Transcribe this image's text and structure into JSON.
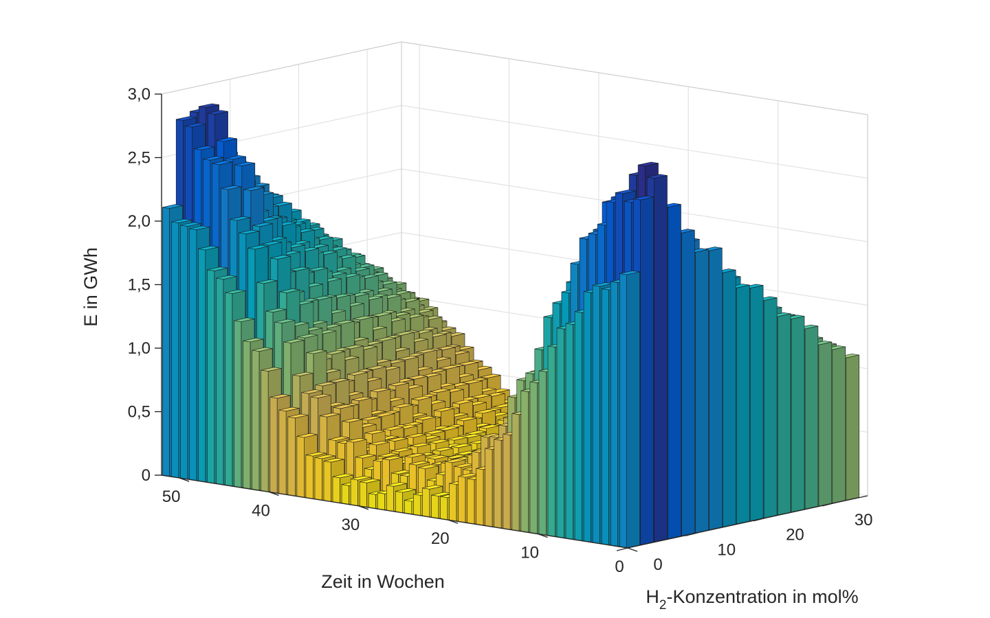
{
  "chart_data": {
    "type": "bar3d",
    "title": "",
    "xlabel": "Zeit in Wochen",
    "ylabel_main": "H",
    "ylabel_sub": "2",
    "ylabel_rest": "-Konzentration in mol%",
    "zlabel": "E in GWh",
    "xlim": [
      0,
      52
    ],
    "ylim": [
      0,
      35
    ],
    "zlim": [
      0,
      3.0
    ],
    "x_ticks": [
      0,
      10,
      20,
      30,
      40,
      50
    ],
    "y_ticks": [
      0,
      10,
      20,
      30
    ],
    "z_ticks": [
      {
        "value": 0,
        "label": "0"
      },
      {
        "value": 0.5,
        "label": "0,5"
      },
      {
        "value": 1.0,
        "label": "1,0"
      },
      {
        "value": 1.5,
        "label": "1,5"
      },
      {
        "value": 2.0,
        "label": "2,0"
      },
      {
        "value": 2.5,
        "label": "2,5"
      },
      {
        "value": 3.0,
        "label": "3,0"
      }
    ],
    "grid": true,
    "colormap": "parula",
    "weeks": 52,
    "concentrations": [
      0,
      2,
      4,
      6,
      8,
      10,
      12,
      14,
      16,
      18,
      20,
      22,
      24,
      26,
      28,
      30,
      32
    ],
    "peaks": [
      {
        "conc": 0,
        "winter": 2.1,
        "summer": 0.15
      },
      {
        "conc": 2,
        "winter": 2.75,
        "summer": 0.3
      },
      {
        "conc": 4,
        "winter": 2.9,
        "summer": 0.3
      },
      {
        "conc": 6,
        "winter": 2.55,
        "summer": 0.28
      },
      {
        "conc": 8,
        "winter": 2.4,
        "summer": 0.26
      },
      {
        "conc": 10,
        "winter": 2.25,
        "summer": 0.24
      },
      {
        "conc": 12,
        "winter": 2.15,
        "summer": 0.22
      },
      {
        "conc": 14,
        "winter": 2.0,
        "summer": 0.2
      },
      {
        "conc": 16,
        "winter": 1.9,
        "summer": 0.18
      },
      {
        "conc": 18,
        "winter": 1.8,
        "summer": 0.16
      },
      {
        "conc": 20,
        "winter": 1.7,
        "summer": 0.15
      },
      {
        "conc": 22,
        "winter": 1.6,
        "summer": 0.14
      },
      {
        "conc": 24,
        "winter": 1.5,
        "summer": 0.13
      },
      {
        "conc": 26,
        "winter": 1.4,
        "summer": 0.12
      },
      {
        "conc": 28,
        "winter": 1.3,
        "summer": 0.11
      },
      {
        "conc": 30,
        "winter": 1.2,
        "summer": 0.1
      },
      {
        "conc": 32,
        "winter": 1.1,
        "summer": 0.1
      }
    ]
  }
}
